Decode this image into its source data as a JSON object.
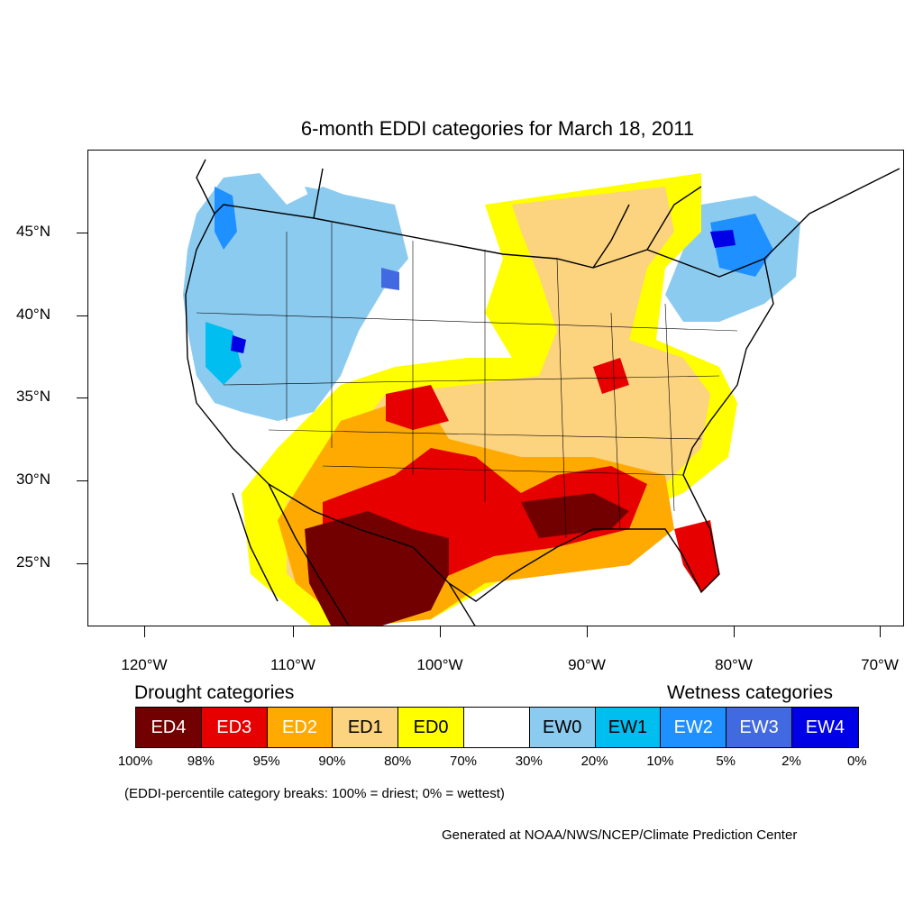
{
  "title": "6-month EDDI categories for March 18, 2011",
  "lat_labels": [
    "45°N",
    "40°N",
    "35°N",
    "30°N",
    "25°N"
  ],
  "lon_labels": [
    "120°W",
    "110°W",
    "100°W",
    "90°W",
    "80°W",
    "70°W"
  ],
  "legend": {
    "drought_title": "Drought categories",
    "wetness_title": "Wetness categories",
    "categories": [
      {
        "label": "ED4",
        "color": "#730000",
        "text_color": "#ffffff"
      },
      {
        "label": "ED3",
        "color": "#e60000",
        "text_color": "#ffffff"
      },
      {
        "label": "ED2",
        "color": "#ffaa00",
        "text_color": "#ffffff"
      },
      {
        "label": "ED1",
        "color": "#fcd37f",
        "text_color": "#000000"
      },
      {
        "label": "ED0",
        "color": "#ffff00",
        "text_color": "#000000"
      },
      {
        "label": "",
        "color": "#ffffff",
        "text_color": "#000000"
      },
      {
        "label": "EW0",
        "color": "#8ccbf0",
        "text_color": "#000000"
      },
      {
        "label": "EW1",
        "color": "#00bff0",
        "text_color": "#000000"
      },
      {
        "label": "EW2",
        "color": "#1e90ff",
        "text_color": "#ffffff"
      },
      {
        "label": "EW3",
        "color": "#4169e1",
        "text_color": "#ffffff"
      },
      {
        "label": "EW4",
        "color": "#0000e6",
        "text_color": "#ffffff"
      }
    ],
    "breaks": [
      "100%",
      "98%",
      "95%",
      "90%",
      "80%",
      "70%",
      "30%",
      "20%",
      "10%",
      "5%",
      "2%",
      "0%"
    ]
  },
  "note": "(EDDI-percentile category breaks: 100% = driest; 0% = wettest)",
  "credit": "Generated at NOAA/NWS/NCEP/Climate Prediction Center"
}
